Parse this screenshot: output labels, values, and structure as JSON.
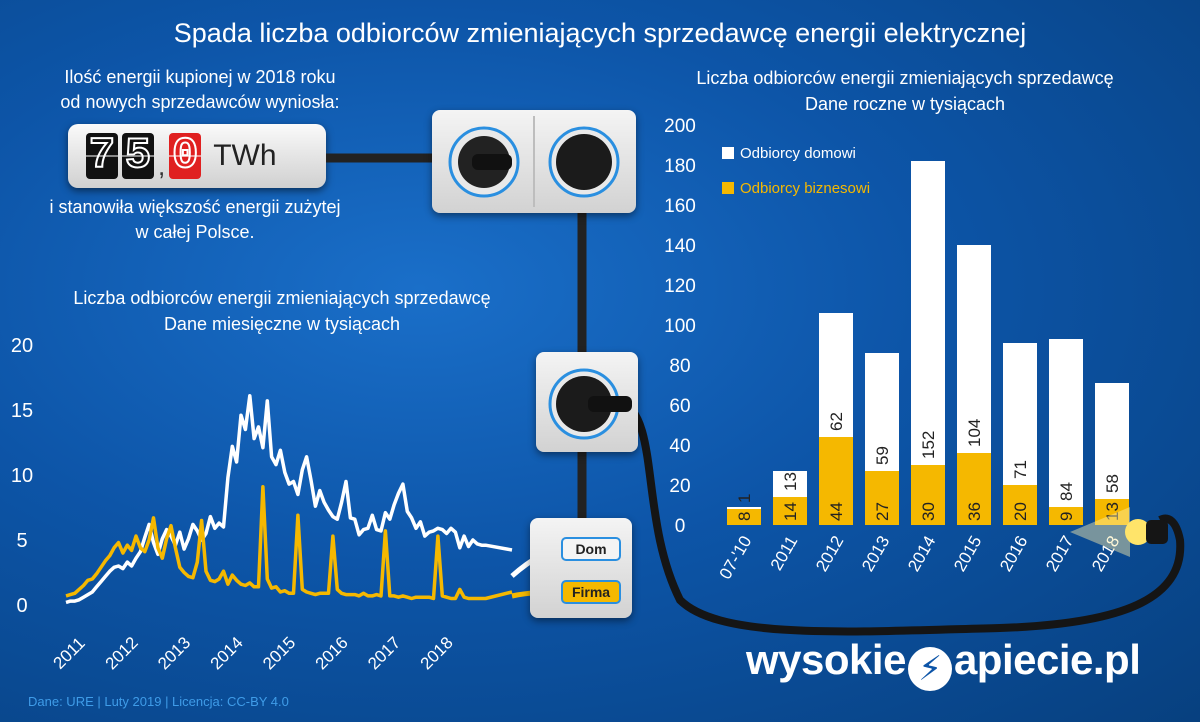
{
  "title": "Spada liczba odbiorców zmieniających sprzedawcę energii elektrycznej",
  "energy": {
    "caption_top_1": "Ilość energii kupionej w 2018 roku",
    "caption_top_2": "od nowych sprzedawców wyniosła:",
    "digits": [
      "7",
      "5",
      "0"
    ],
    "comma": ",",
    "unit": "TWh",
    "caption_bottom_1": "i stanowiła większość energii zużytej",
    "caption_bottom_2": "w całej Polsce."
  },
  "labels": {
    "dom": "Dom",
    "firma": "Firma"
  },
  "brand": {
    "left": "wysokie",
    "right": "apiecie.pl"
  },
  "footer": "Dane: URE  |  Luty 2019  |  Licencja: CC-BY 4.0",
  "colors": {
    "home": "#ffffff",
    "business": "#f5b800",
    "background": "#0d55a8"
  },
  "chart_data": [
    {
      "type": "line",
      "title": "Liczba odbiorców energii zmieniających sprzedawcę",
      "subtitle": "Dane miesięczne w tysiącach",
      "ylim": [
        0,
        20
      ],
      "yticks": [
        0,
        5,
        10,
        15,
        20
      ],
      "xticks": [
        "2011",
        "2012",
        "2013",
        "2014",
        "2015",
        "2016",
        "2017",
        "2018"
      ],
      "x_start": 2011.0,
      "x_step_months": 1,
      "series": [
        {
          "name": "Dom",
          "color": "#ffffff",
          "values": [
            0.2,
            0.3,
            0.3,
            0.4,
            0.6,
            0.8,
            1.0,
            1.4,
            1.8,
            2.2,
            2.6,
            2.9,
            3.0,
            2.8,
            3.3,
            3.0,
            3.6,
            4.1,
            5.2,
            6.2,
            4.8,
            3.9,
            5.1,
            5.8,
            5.3,
            4.6,
            5.6,
            4.3,
            5.1,
            6.2,
            5.7,
            5.0,
            5.5,
            6.8,
            5.9,
            6.3,
            6.0,
            9.8,
            12.2,
            11.0,
            14.6,
            13.5,
            16.1,
            12.8,
            13.7,
            12.1,
            15.7,
            11.4,
            10.8,
            11.9,
            10.2,
            9.3,
            9.5,
            8.5,
            10.4,
            11.4,
            9.6,
            7.6,
            8.8,
            7.9,
            7.3,
            6.8,
            6.6,
            7.9,
            9.5,
            6.7,
            6.6,
            5.4,
            5.8,
            5.9,
            6.9,
            5.8,
            5.7,
            7.1,
            6.6,
            7.7,
            8.6,
            9.3,
            7.2,
            6.7,
            5.9,
            6.4,
            5.3,
            5.6,
            5.7,
            5.9,
            5.8,
            5.5,
            5.9,
            5.6,
            4.4,
            5.3,
            4.5,
            5.0,
            4.7,
            4.6
          ]
        },
        {
          "name": "Firma",
          "color": "#f5b800",
          "values": [
            0.7,
            0.8,
            0.9,
            1.2,
            1.5,
            1.9,
            2.0,
            2.4,
            2.9,
            3.4,
            3.8,
            4.4,
            4.8,
            4.0,
            4.6,
            4.2,
            5.3,
            4.4,
            4.1,
            5.0,
            6.7,
            4.4,
            3.6,
            5.1,
            6.1,
            4.4,
            2.9,
            2.5,
            2.2,
            2.1,
            3.3,
            6.5,
            2.6,
            1.9,
            1.8,
            2.0,
            2.6,
            1.6,
            2.3,
            1.9,
            1.6,
            1.5,
            1.7,
            1.4,
            1.4,
            9.1,
            2.0,
            1.3,
            1.4,
            1.0,
            1.1,
            0.9,
            0.9,
            6.9,
            1.2,
            1.0,
            0.9,
            0.8,
            0.9,
            0.9,
            0.9,
            5.3,
            1.2,
            0.9,
            0.8,
            0.8,
            0.8,
            0.7,
            0.9,
            0.7,
            0.7,
            0.8,
            0.7,
            5.7,
            0.7,
            0.7,
            0.6,
            0.7,
            0.6,
            0.5,
            0.6,
            0.6,
            0.6,
            0.6,
            0.5,
            5.3,
            0.7,
            0.6,
            0.5,
            0.5,
            1.2,
            0.6,
            0.5,
            0.5,
            0.5,
            0.5
          ]
        }
      ]
    },
    {
      "type": "bar",
      "stacked": true,
      "title": "Liczba odbiorców energii zmieniających sprzedawcę",
      "subtitle": "Dane roczne w tysiącach",
      "categories": [
        "07-'10",
        "2011",
        "2012",
        "2013",
        "2014",
        "2015",
        "2016",
        "2017",
        "2018"
      ],
      "ylim": [
        0,
        200
      ],
      "yticks": [
        0,
        20,
        40,
        60,
        80,
        100,
        120,
        140,
        160,
        180,
        200
      ],
      "legend_placement": "top-left",
      "series": [
        {
          "name": "Odbiorcy biznesowi",
          "color": "#f5b800",
          "values": [
            8,
            14,
            44,
            27,
            30,
            36,
            20,
            9,
            13
          ]
        },
        {
          "name": "Odbiorcy domowi",
          "color": "#ffffff",
          "values": [
            1,
            13,
            62,
            59,
            152,
            104,
            71,
            84,
            58
          ]
        }
      ]
    }
  ]
}
